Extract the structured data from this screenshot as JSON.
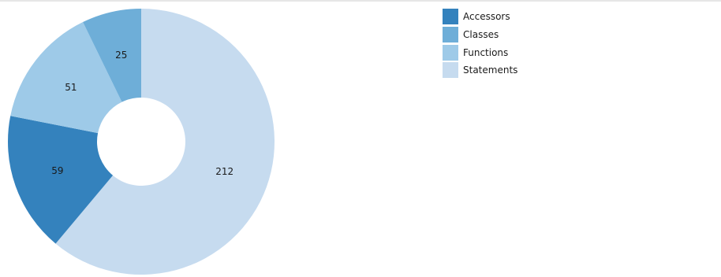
{
  "chart_data": {
    "type": "pie",
    "donut": true,
    "title": "",
    "legend_position": "top-right",
    "categories": [
      "Accessors",
      "Classes",
      "Functions",
      "Statements"
    ],
    "values": [
      59,
      25,
      51,
      212
    ],
    "colors": [
      "#3482bd",
      "#6eaed8",
      "#9ecae8",
      "#c6dbef"
    ]
  }
}
